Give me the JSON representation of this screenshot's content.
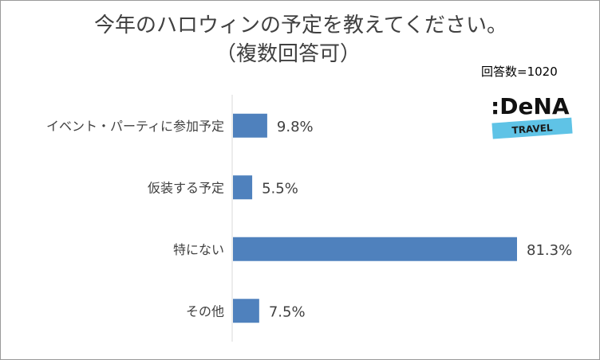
{
  "title": {
    "line1": "今年のハロウィンの予定を教えてください。",
    "line2": "（複数回答可）"
  },
  "sample_note": "回答数=1020",
  "logo": {
    "text": ":DeNA",
    "subtext": "TRAVEL",
    "colors": {
      "text": "#111111",
      "band": "#5fc3e6"
    }
  },
  "chart_data": {
    "type": "bar",
    "orientation": "horizontal",
    "categories": [
      "イベント・パーティに参加予定",
      "仮装する予定",
      "特にない",
      "その他"
    ],
    "values": [
      9.8,
      5.5,
      81.3,
      7.5
    ],
    "value_labels": [
      "9.8%",
      "5.5%",
      "81.3%",
      "7.5%"
    ],
    "xlim": [
      0,
      81.3
    ],
    "grid": false,
    "legend": "none",
    "colors": {
      "bar": "#4f81bd",
      "axis": "#d9d9d9",
      "text": "#404040"
    }
  }
}
